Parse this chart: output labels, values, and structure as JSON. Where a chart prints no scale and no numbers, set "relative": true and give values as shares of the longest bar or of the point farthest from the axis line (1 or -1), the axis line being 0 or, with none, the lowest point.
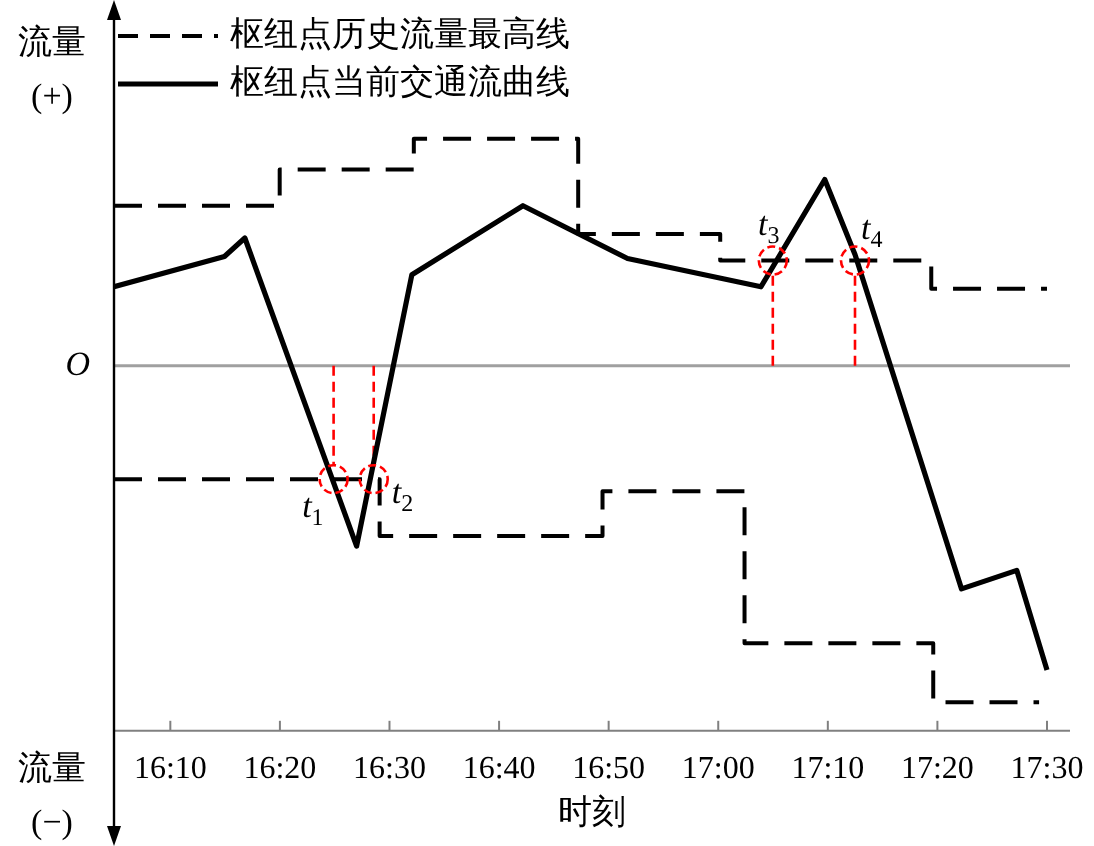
{
  "chart_data": {
    "type": "line",
    "relative": true,
    "xlabel": "时刻",
    "legend": "top",
    "xlim": [
      16.081,
      17.535
    ],
    "xticks": [
      {
        "value": 16.16667,
        "label": "16:10"
      },
      {
        "value": 16.33333,
        "label": "16:20"
      },
      {
        "value": 16.5,
        "label": "16:30"
      },
      {
        "value": 16.66667,
        "label": "16:40"
      },
      {
        "value": 16.83333,
        "label": "16:50"
      },
      {
        "value": 17,
        "label": "17:00"
      },
      {
        "value": 17.16667,
        "label": "17:10"
      },
      {
        "value": 17.33333,
        "label": "17:20"
      },
      {
        "value": 17.5,
        "label": "17:30"
      }
    ],
    "series": [
      {
        "name": "枢纽点历史流量最高线",
        "type": "step",
        "line_style": "dashed",
        "color": "#000000",
        "x": [
          16.081,
          16.333,
          16.537,
          16.787,
          17.003,
          17.324,
          17.5
        ],
        "values": [
          0.476,
          0.584,
          0.675,
          0.392,
          0.313,
          0.229,
          0.229
        ]
      },
      {
        "type": "step",
        "line_style": "dashed",
        "color": "#000000",
        "x": [
          16.081,
          16.485,
          16.824,
          17.04,
          17.327,
          17.488
        ],
        "values": [
          -0.337,
          -0.506,
          -0.373,
          -0.825,
          -1,
          -1
        ]
      },
      {
        "name": "枢纽点当前交通流曲线",
        "line_style": "solid",
        "color": "#000000",
        "x": [
          16.081,
          16.249,
          16.28,
          16.45,
          16.534,
          16.703,
          16.862,
          17.065,
          17.162,
          17.208,
          17.37,
          17.454,
          17.5
        ],
        "values": [
          0.235,
          0.325,
          0.38,
          -0.536,
          0.271,
          0.476,
          0.319,
          0.235,
          0.554,
          0.331,
          -0.663,
          -0.608,
          -0.904
        ]
      }
    ],
    "ref_lines": [
      {
        "axis": "x",
        "value": 16.415,
        "label": "t$_{1}$",
        "color": "#ff0000",
        "line_style": "dashed"
      },
      {
        "axis": "x",
        "value": 16.476,
        "label": "t$_{2}$",
        "color": "#ff0000",
        "line_style": "dashed"
      },
      {
        "axis": "x",
        "value": 17.083,
        "label": "t$_{3}$",
        "color": "#ff0000",
        "line_style": "dashed"
      },
      {
        "axis": "x",
        "value": 17.208,
        "label": "t$_{4}$",
        "color": "#ff0000",
        "line_style": "dashed"
      }
    ],
    "annotations": [
      "流量\n(+)",
      "流量\n(−)",
      "O"
    ]
  }
}
